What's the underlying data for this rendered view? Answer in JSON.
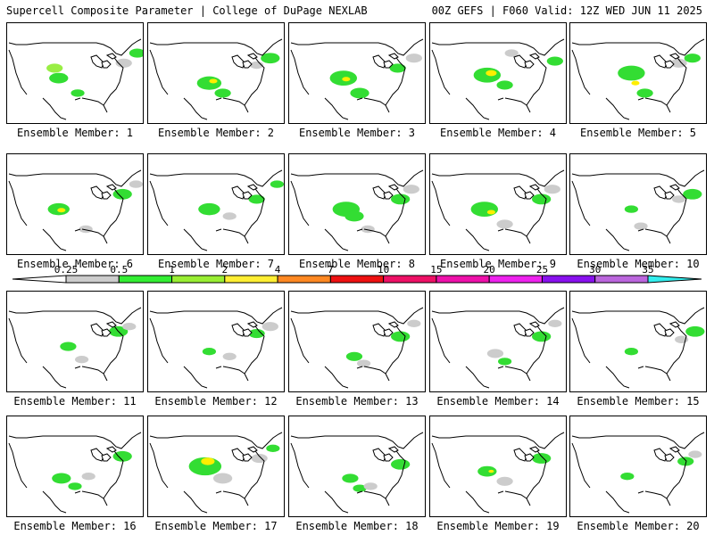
{
  "header": {
    "left": "Supercell Composite Parameter | College of DuPage NEXLAB",
    "right": "00Z GEFS | F060 Valid: 12Z WED JUN 11 2025"
  },
  "members": [
    {
      "label": "Ensemble Member: 1",
      "blobs": [
        [
          0.35,
          0.45,
          "#99ee44",
          0.06
        ],
        [
          0.38,
          0.55,
          "#33dd33",
          0.07
        ],
        [
          0.52,
          0.7,
          "#33dd33",
          0.05
        ],
        [
          0.86,
          0.4,
          "#cccccc",
          0.06
        ],
        [
          0.96,
          0.3,
          "#33dd33",
          0.06
        ]
      ]
    },
    {
      "label": "Ensemble Member: 2",
      "blobs": [
        [
          0.45,
          0.6,
          "#33dd33",
          0.09
        ],
        [
          0.48,
          0.58,
          "#ffee00",
          0.03
        ],
        [
          0.55,
          0.7,
          "#33dd33",
          0.06
        ],
        [
          0.9,
          0.35,
          "#33dd33",
          0.07
        ],
        [
          0.8,
          0.42,
          "#cccccc",
          0.05
        ]
      ]
    },
    {
      "label": "Ensemble Member: 3",
      "blobs": [
        [
          0.4,
          0.55,
          "#33dd33",
          0.1
        ],
        [
          0.42,
          0.56,
          "#ffee00",
          0.03
        ],
        [
          0.52,
          0.7,
          "#33dd33",
          0.07
        ],
        [
          0.8,
          0.45,
          "#33dd33",
          0.06
        ],
        [
          0.92,
          0.35,
          "#cccccc",
          0.06
        ]
      ]
    },
    {
      "label": "Ensemble Member: 4",
      "blobs": [
        [
          0.42,
          0.52,
          "#33dd33",
          0.1
        ],
        [
          0.45,
          0.5,
          "#ffee00",
          0.04
        ],
        [
          0.55,
          0.62,
          "#33dd33",
          0.06
        ],
        [
          0.92,
          0.38,
          "#33dd33",
          0.06
        ],
        [
          0.6,
          0.3,
          "#cccccc",
          0.05
        ]
      ]
    },
    {
      "label": "Ensemble Member: 5",
      "blobs": [
        [
          0.45,
          0.5,
          "#33dd33",
          0.1
        ],
        [
          0.48,
          0.6,
          "#ffee00",
          0.03
        ],
        [
          0.55,
          0.7,
          "#33dd33",
          0.06
        ],
        [
          0.8,
          0.4,
          "#cccccc",
          0.06
        ],
        [
          0.9,
          0.35,
          "#33dd33",
          0.06
        ]
      ]
    },
    {
      "label": "Ensemble Member: 6",
      "blobs": [
        [
          0.38,
          0.55,
          "#33dd33",
          0.08
        ],
        [
          0.4,
          0.56,
          "#ffee00",
          0.03
        ],
        [
          0.58,
          0.75,
          "#cccccc",
          0.05
        ],
        [
          0.85,
          0.4,
          "#33dd33",
          0.07
        ],
        [
          0.95,
          0.3,
          "#cccccc",
          0.05
        ]
      ]
    },
    {
      "label": "Ensemble Member: 7",
      "blobs": [
        [
          0.45,
          0.55,
          "#33dd33",
          0.08
        ],
        [
          0.6,
          0.62,
          "#cccccc",
          0.05
        ],
        [
          0.8,
          0.45,
          "#33dd33",
          0.06
        ],
        [
          0.95,
          0.3,
          "#33dd33",
          0.05
        ]
      ]
    },
    {
      "label": "Ensemble Member: 8",
      "blobs": [
        [
          0.42,
          0.55,
          "#33dd33",
          0.1
        ],
        [
          0.48,
          0.62,
          "#33dd33",
          0.07
        ],
        [
          0.58,
          0.75,
          "#cccccc",
          0.05
        ],
        [
          0.82,
          0.45,
          "#33dd33",
          0.07
        ],
        [
          0.9,
          0.35,
          "#cccccc",
          0.06
        ]
      ]
    },
    {
      "label": "Ensemble Member: 9",
      "blobs": [
        [
          0.4,
          0.55,
          "#33dd33",
          0.1
        ],
        [
          0.45,
          0.58,
          "#ffee00",
          0.03
        ],
        [
          0.55,
          0.7,
          "#cccccc",
          0.06
        ],
        [
          0.82,
          0.45,
          "#33dd33",
          0.07
        ],
        [
          0.9,
          0.35,
          "#cccccc",
          0.06
        ]
      ]
    },
    {
      "label": "Ensemble Member: 10",
      "blobs": [
        [
          0.45,
          0.55,
          "#33dd33",
          0.05
        ],
        [
          0.52,
          0.72,
          "#cccccc",
          0.05
        ],
        [
          0.8,
          0.45,
          "#cccccc",
          0.05
        ],
        [
          0.9,
          0.4,
          "#33dd33",
          0.07
        ]
      ]
    },
    {
      "label": "Ensemble Member: 11",
      "blobs": [
        [
          0.45,
          0.55,
          "#33dd33",
          0.06
        ],
        [
          0.55,
          0.68,
          "#cccccc",
          0.05
        ],
        [
          0.82,
          0.4,
          "#33dd33",
          0.07
        ],
        [
          0.9,
          0.35,
          "#cccccc",
          0.05
        ]
      ]
    },
    {
      "label": "Ensemble Member: 12",
      "blobs": [
        [
          0.45,
          0.6,
          "#33dd33",
          0.05
        ],
        [
          0.6,
          0.65,
          "#cccccc",
          0.05
        ],
        [
          0.8,
          0.42,
          "#33dd33",
          0.06
        ],
        [
          0.9,
          0.35,
          "#cccccc",
          0.06
        ]
      ]
    },
    {
      "label": "Ensemble Member: 13",
      "blobs": [
        [
          0.48,
          0.65,
          "#33dd33",
          0.06
        ],
        [
          0.55,
          0.72,
          "#cccccc",
          0.05
        ],
        [
          0.82,
          0.45,
          "#33dd33",
          0.07
        ],
        [
          0.92,
          0.32,
          "#cccccc",
          0.05
        ]
      ]
    },
    {
      "label": "Ensemble Member: 14",
      "blobs": [
        [
          0.48,
          0.62,
          "#cccccc",
          0.06
        ],
        [
          0.55,
          0.7,
          "#33dd33",
          0.05
        ],
        [
          0.82,
          0.45,
          "#33dd33",
          0.07
        ],
        [
          0.92,
          0.32,
          "#cccccc",
          0.05
        ]
      ]
    },
    {
      "label": "Ensemble Member: 15",
      "blobs": [
        [
          0.45,
          0.6,
          "#33dd33",
          0.05
        ],
        [
          0.82,
          0.48,
          "#cccccc",
          0.05
        ],
        [
          0.92,
          0.4,
          "#33dd33",
          0.07
        ]
      ]
    },
    {
      "label": "Ensemble Member: 16",
      "blobs": [
        [
          0.4,
          0.62,
          "#33dd33",
          0.07
        ],
        [
          0.5,
          0.7,
          "#33dd33",
          0.05
        ],
        [
          0.6,
          0.6,
          "#cccccc",
          0.05
        ],
        [
          0.85,
          0.4,
          "#33dd33",
          0.07
        ]
      ]
    },
    {
      "label": "Ensemble Member: 17",
      "blobs": [
        [
          0.42,
          0.5,
          "#33dd33",
          0.12
        ],
        [
          0.44,
          0.45,
          "#ffee00",
          0.05
        ],
        [
          0.55,
          0.62,
          "#cccccc",
          0.07
        ],
        [
          0.82,
          0.42,
          "#cccccc",
          0.06
        ],
        [
          0.92,
          0.32,
          "#33dd33",
          0.05
        ]
      ]
    },
    {
      "label": "Ensemble Member: 18",
      "blobs": [
        [
          0.45,
          0.62,
          "#33dd33",
          0.06
        ],
        [
          0.52,
          0.72,
          "#33dd33",
          0.05
        ],
        [
          0.6,
          0.7,
          "#cccccc",
          0.05
        ],
        [
          0.82,
          0.48,
          "#33dd33",
          0.07
        ]
      ]
    },
    {
      "label": "Ensemble Member: 19",
      "blobs": [
        [
          0.42,
          0.55,
          "#33dd33",
          0.07
        ],
        [
          0.45,
          0.55,
          "#ffee00",
          0.02
        ],
        [
          0.55,
          0.65,
          "#cccccc",
          0.06
        ],
        [
          0.82,
          0.42,
          "#33dd33",
          0.07
        ]
      ]
    },
    {
      "label": "Ensemble Member: 20",
      "blobs": [
        [
          0.42,
          0.6,
          "#33dd33",
          0.05
        ],
        [
          0.85,
          0.45,
          "#33dd33",
          0.06
        ],
        [
          0.92,
          0.38,
          "#cccccc",
          0.05
        ]
      ]
    }
  ],
  "colorbar": {
    "ticks": [
      "0.25",
      "0.5",
      "1",
      "2",
      "4",
      "7",
      "10",
      "15",
      "20",
      "25",
      "30",
      "35"
    ],
    "colors": [
      "#cccccc",
      "#33ee33",
      "#99ee33",
      "#ffee33",
      "#ff8822",
      "#ee1111",
      "#ee1166",
      "#ee11aa",
      "#ee22ee",
      "#8811ee",
      "#bb66dd"
    ],
    "left_arrow_color": "#ffffff",
    "right_arrow_color": "#33eeee"
  }
}
